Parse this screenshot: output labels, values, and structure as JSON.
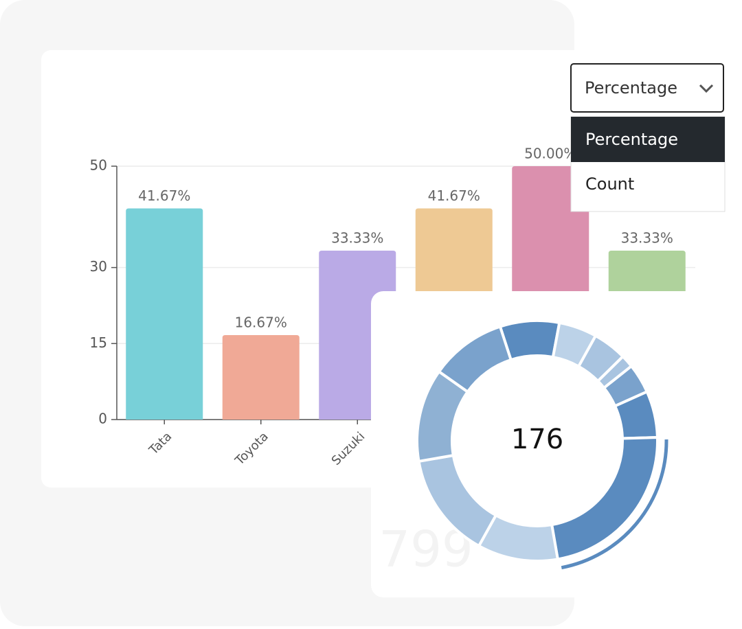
{
  "dropdown": {
    "selected": "Percentage",
    "options": [
      "Percentage",
      "Count"
    ]
  },
  "background_text": "799",
  "chart_data": [
    {
      "type": "bar",
      "categories": [
        "Tata",
        "Toyota",
        "Suzuki",
        null,
        null,
        null
      ],
      "values": [
        41.67,
        16.67,
        33.33,
        41.67,
        50.0,
        33.33
      ],
      "value_labels": [
        "41.67%",
        "16.67%",
        "33.33%",
        "41.67%",
        "50.00%",
        "33.33%"
      ],
      "colors": [
        "#78d0d8",
        "#f0a996",
        "#baaae6",
        "#eec994",
        "#db90ae",
        "#afd29c"
      ],
      "ylim": [
        0,
        50
      ],
      "yticks": [
        0,
        15,
        30,
        50
      ],
      "grid": true
    },
    {
      "type": "pie",
      "center_label": "176",
      "values": [
        14,
        9,
        8,
        3,
        7,
        11,
        40,
        19,
        25,
        22,
        18
      ],
      "colors": [
        "#5a8bbf",
        "#bcd2e8",
        "#a9c4e0",
        "#a9c4e0",
        "#7aa2cc",
        "#5a8bbf",
        "#5a8bbf",
        "#bcd2e8",
        "#a9c4e0",
        "#8fb1d3",
        "#7aa2cc"
      ]
    }
  ]
}
